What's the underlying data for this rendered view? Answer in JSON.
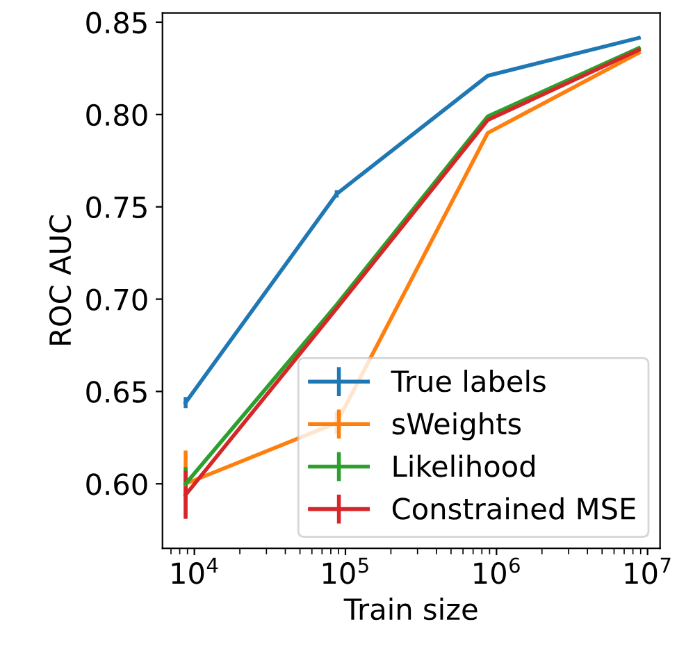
{
  "chart_data": {
    "type": "line",
    "xlabel": "Train size",
    "ylabel": "ROC AUC",
    "x": [
      8750,
      87500,
      875000,
      8750000
    ],
    "series": [
      {
        "name": "True labels",
        "color": "#1f77b4",
        "values": [
          0.644,
          0.757,
          0.821,
          0.8415
        ],
        "errors": [
          0.003,
          0.002,
          null,
          null
        ]
      },
      {
        "name": "sWeights",
        "color": "#ff7f0e",
        "values": [
          0.6,
          0.633,
          0.79,
          0.8335
        ],
        "errors": [
          0.018,
          0.006,
          null,
          null
        ]
      },
      {
        "name": "Likelihood",
        "color": "#2ca02c",
        "values": [
          0.6,
          0.697,
          0.799,
          0.836
        ],
        "errors": [
          0.009,
          null,
          null,
          null
        ]
      },
      {
        "name": "Constrained MSE",
        "color": "#d62728",
        "values": [
          0.594,
          0.695,
          0.797,
          0.835
        ],
        "errors": [
          0.013,
          null,
          null,
          null
        ]
      }
    ],
    "log": "x",
    "xlim": [
      6150,
      12100000
    ],
    "ylim": [
      0.565,
      0.855
    ],
    "xticks": [
      {
        "value": 10000,
        "label": "10$^{4}$"
      },
      {
        "value": 100000,
        "label": "10$^{5}$"
      },
      {
        "value": 1000000,
        "label": "10$^{6}$"
      },
      {
        "value": 10000000,
        "label": "10$^{7}$"
      }
    ],
    "yticks": [
      {
        "value": 0.6,
        "label": "0.60"
      },
      {
        "value": 0.65,
        "label": "0.65"
      },
      {
        "value": 0.7,
        "label": "0.70"
      },
      {
        "value": 0.75,
        "label": "0.75"
      },
      {
        "value": 0.8,
        "label": "0.80"
      },
      {
        "value": 0.85,
        "label": "0.85"
      }
    ],
    "legend": "lower right",
    "grid": false,
    "marker": "none",
    "line_style": "solid"
  }
}
